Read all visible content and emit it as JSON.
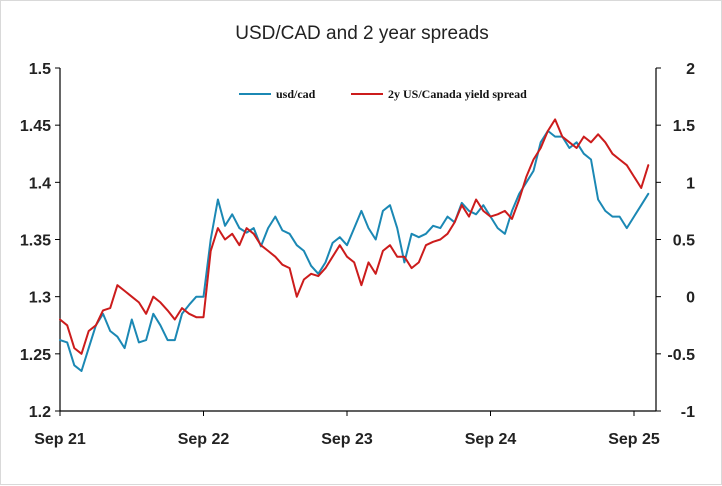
{
  "chart_data": {
    "type": "line",
    "title": "USD/CAD and 2 year spreads",
    "x_ticks": [
      "Sep 21",
      "Sep 22",
      "Sep 23",
      "Sep 24",
      "Sep 25"
    ],
    "y_left": {
      "ticks": [
        "1.2",
        "1.25",
        "1.3",
        "1.35",
        "1.4",
        "1.45",
        "1.5"
      ],
      "range": [
        1.2,
        1.5
      ]
    },
    "y_right": {
      "ticks": [
        "-1",
        "-0.5",
        "0",
        "0.5",
        "1",
        "1.5",
        "2"
      ],
      "range": [
        -1,
        2
      ]
    },
    "grid": false,
    "legend_position": "top-center",
    "series": [
      {
        "name": "usd/cad",
        "axis": "left",
        "color": "#1b88b4",
        "x": [
          0,
          0.05,
          0.1,
          0.15,
          0.2,
          0.25,
          0.3,
          0.35,
          0.4,
          0.45,
          0.5,
          0.55,
          0.6,
          0.65,
          0.7,
          0.75,
          0.8,
          0.85,
          0.9,
          0.95,
          1.0,
          1.05,
          1.1,
          1.15,
          1.2,
          1.25,
          1.3,
          1.35,
          1.4,
          1.45,
          1.5,
          1.55,
          1.6,
          1.65,
          1.7,
          1.75,
          1.8,
          1.85,
          1.9,
          1.95,
          2.0,
          2.05,
          2.1,
          2.15,
          2.2,
          2.25,
          2.3,
          2.35,
          2.4,
          2.45,
          2.5,
          2.55,
          2.6,
          2.65,
          2.7,
          2.75,
          2.8,
          2.85,
          2.9,
          2.95,
          3.0,
          3.05,
          3.1,
          3.15,
          3.2,
          3.25,
          3.3,
          3.35,
          3.4,
          3.45,
          3.5,
          3.55,
          3.6,
          3.65,
          3.7,
          3.75,
          3.8,
          3.85,
          3.9,
          3.95,
          4.0,
          4.05,
          4.1
        ],
        "values": [
          1.262,
          1.26,
          1.24,
          1.235,
          1.255,
          1.275,
          1.285,
          1.27,
          1.265,
          1.255,
          1.28,
          1.26,
          1.262,
          1.285,
          1.275,
          1.262,
          1.262,
          1.285,
          1.293,
          1.3,
          1.3,
          1.35,
          1.385,
          1.362,
          1.372,
          1.36,
          1.356,
          1.36,
          1.344,
          1.36,
          1.37,
          1.358,
          1.355,
          1.345,
          1.34,
          1.327,
          1.32,
          1.33,
          1.347,
          1.352,
          1.345,
          1.36,
          1.375,
          1.36,
          1.35,
          1.375,
          1.38,
          1.36,
          1.33,
          1.355,
          1.352,
          1.355,
          1.362,
          1.36,
          1.37,
          1.365,
          1.382,
          1.375,
          1.372,
          1.38,
          1.37,
          1.36,
          1.355,
          1.375,
          1.39,
          1.4,
          1.41,
          1.435,
          1.445,
          1.44,
          1.44,
          1.43,
          1.435,
          1.425,
          1.42,
          1.385,
          1.375,
          1.37,
          1.37,
          1.36,
          1.37,
          1.38,
          1.39
        ]
      },
      {
        "name": "2y US/Canada yield spread",
        "axis": "right",
        "color": "#cc1c1c",
        "x": [
          0,
          0.05,
          0.1,
          0.15,
          0.2,
          0.25,
          0.3,
          0.35,
          0.4,
          0.45,
          0.5,
          0.55,
          0.6,
          0.65,
          0.7,
          0.75,
          0.8,
          0.85,
          0.9,
          0.95,
          1.0,
          1.05,
          1.1,
          1.15,
          1.2,
          1.25,
          1.3,
          1.35,
          1.4,
          1.45,
          1.5,
          1.55,
          1.6,
          1.65,
          1.7,
          1.75,
          1.8,
          1.85,
          1.9,
          1.95,
          2.0,
          2.05,
          2.1,
          2.15,
          2.2,
          2.25,
          2.3,
          2.35,
          2.4,
          2.45,
          2.5,
          2.55,
          2.6,
          2.65,
          2.7,
          2.75,
          2.8,
          2.85,
          2.9,
          2.95,
          3.0,
          3.05,
          3.1,
          3.15,
          3.2,
          3.25,
          3.3,
          3.35,
          3.4,
          3.45,
          3.5,
          3.55,
          3.6,
          3.65,
          3.7,
          3.75,
          3.8,
          3.85,
          3.9,
          3.95,
          4.0,
          4.05,
          4.1
        ],
        "values": [
          -0.2,
          -0.25,
          -0.45,
          -0.5,
          -0.3,
          -0.25,
          -0.12,
          -0.1,
          0.1,
          0.05,
          0.0,
          -0.05,
          -0.15,
          0.0,
          -0.05,
          -0.12,
          -0.2,
          -0.1,
          -0.15,
          -0.18,
          -0.18,
          0.4,
          0.6,
          0.5,
          0.55,
          0.45,
          0.6,
          0.55,
          0.45,
          0.4,
          0.35,
          0.28,
          0.25,
          0.0,
          0.15,
          0.2,
          0.18,
          0.25,
          0.35,
          0.45,
          0.35,
          0.3,
          0.1,
          0.3,
          0.2,
          0.4,
          0.45,
          0.35,
          0.35,
          0.25,
          0.3,
          0.45,
          0.48,
          0.5,
          0.55,
          0.65,
          0.8,
          0.7,
          0.85,
          0.75,
          0.7,
          0.72,
          0.75,
          0.68,
          0.85,
          1.05,
          1.2,
          1.3,
          1.45,
          1.55,
          1.4,
          1.35,
          1.3,
          1.4,
          1.35,
          1.42,
          1.35,
          1.25,
          1.2,
          1.15,
          1.05,
          0.95,
          1.15
        ]
      }
    ]
  }
}
